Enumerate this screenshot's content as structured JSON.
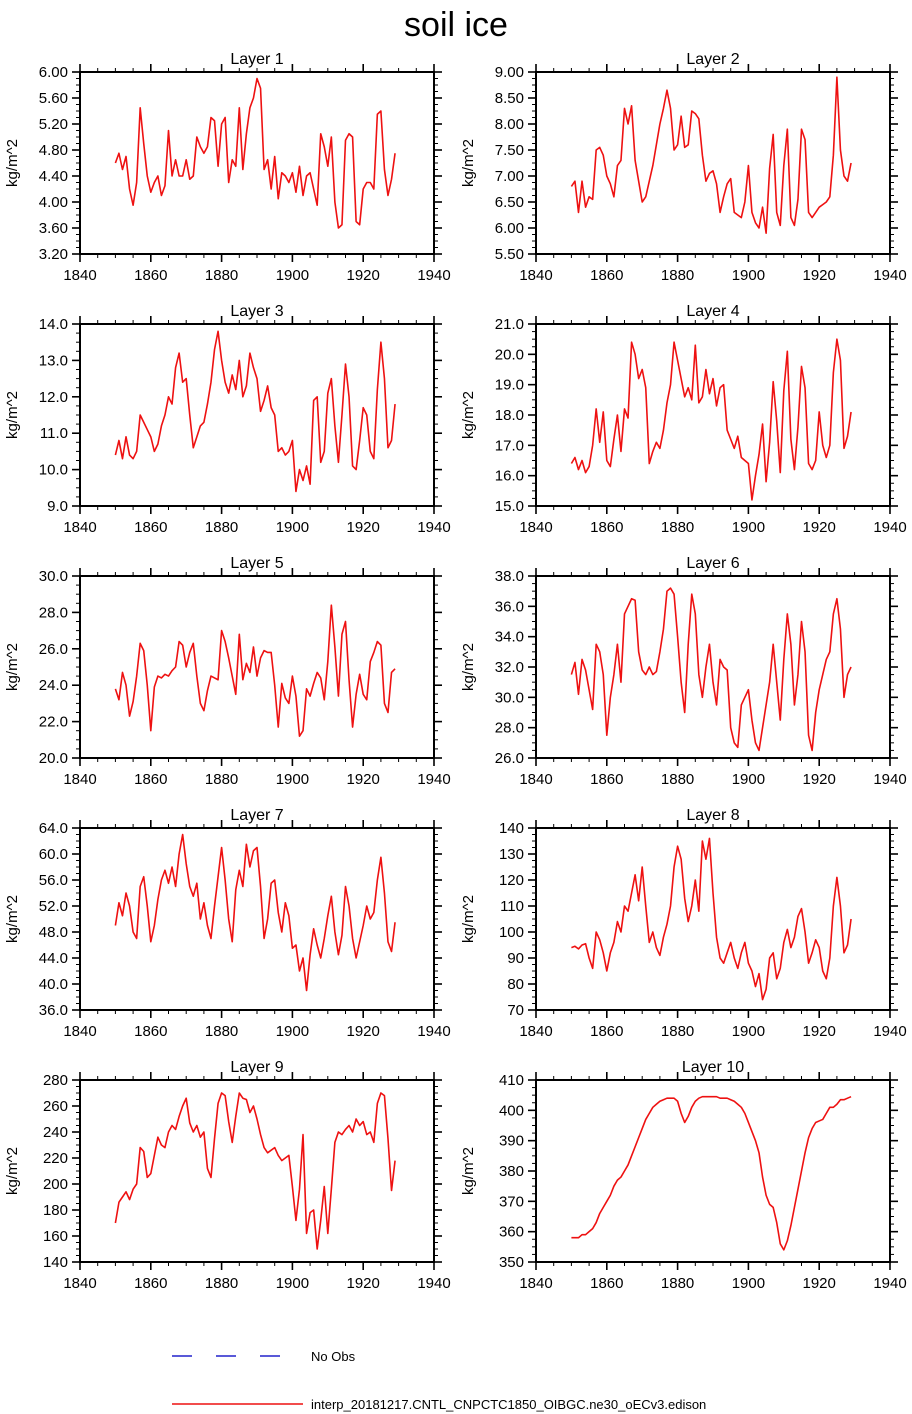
{
  "page": {
    "title": "soil ice"
  },
  "legend": {
    "no_obs_label": "No Obs",
    "no_obs_color": "#2222cc",
    "series_label": "interp_20181217.CNTL_CNPCTC1850_OIBGC.ne30_oECv3.edison",
    "series_color": "#ee1111"
  },
  "chart_data": [
    {
      "type": "line",
      "title": "Layer 1",
      "ylabel": "kg/m^2",
      "xlim": [
        1840,
        1940
      ],
      "xtick": 20,
      "xminor": 5,
      "ylim": [
        3.2,
        6.0
      ],
      "ytick": 0.4,
      "ydecimals": 2,
      "x_start": 1850,
      "x_step": 1,
      "values": [
        4.6,
        4.75,
        4.5,
        4.7,
        4.2,
        3.95,
        4.3,
        5.45,
        4.9,
        4.4,
        4.15,
        4.3,
        4.4,
        4.1,
        4.25,
        5.1,
        4.4,
        4.65,
        4.4,
        4.4,
        4.65,
        4.35,
        4.4,
        5.0,
        4.85,
        4.75,
        4.85,
        5.3,
        5.25,
        4.55,
        5.2,
        5.3,
        4.3,
        4.65,
        4.55,
        5.45,
        4.5,
        5.05,
        5.45,
        5.6,
        5.9,
        5.75,
        4.5,
        4.65,
        4.2,
        4.7,
        4.05,
        4.45,
        4.4,
        4.3,
        4.45,
        4.15,
        4.55,
        4.1,
        4.4,
        4.45,
        4.2,
        3.95,
        5.05,
        4.85,
        4.55,
        5.0,
        4.0,
        3.6,
        3.65,
        4.95,
        5.05,
        5.0,
        3.7,
        3.65,
        4.2,
        4.3,
        4.3,
        4.2,
        5.35,
        5.4,
        4.5,
        4.1,
        4.35,
        4.75
      ]
    },
    {
      "type": "line",
      "title": "Layer 2",
      "ylabel": "kg/m^2",
      "xlim": [
        1840,
        1940
      ],
      "xtick": 20,
      "xminor": 5,
      "ylim": [
        5.5,
        9.0
      ],
      "ytick": 0.5,
      "ydecimals": 2,
      "x_start": 1850,
      "x_step": 1,
      "values": [
        6.8,
        6.9,
        6.3,
        6.9,
        6.4,
        6.6,
        6.55,
        7.5,
        7.55,
        7.4,
        7.0,
        6.85,
        6.6,
        7.2,
        7.3,
        8.3,
        8.0,
        8.35,
        7.3,
        6.9,
        6.5,
        6.6,
        6.9,
        7.2,
        7.6,
        8.0,
        8.3,
        8.65,
        8.3,
        7.5,
        7.6,
        8.15,
        7.55,
        7.6,
        8.25,
        8.2,
        8.1,
        7.4,
        6.9,
        7.05,
        7.1,
        6.85,
        6.3,
        6.6,
        6.85,
        6.95,
        6.3,
        6.25,
        6.2,
        6.5,
        7.2,
        6.3,
        6.1,
        6.0,
        6.4,
        5.9,
        7.15,
        7.8,
        6.3,
        6.05,
        7.2,
        7.9,
        6.2,
        6.05,
        6.55,
        7.9,
        7.7,
        6.3,
        6.2,
        6.3,
        6.4,
        6.45,
        6.5,
        6.6,
        7.4,
        8.9,
        7.5,
        7.0,
        6.9,
        7.25
      ]
    },
    {
      "type": "line",
      "title": "Layer 3",
      "ylabel": "kg/m^2",
      "xlim": [
        1840,
        1940
      ],
      "xtick": 20,
      "xminor": 5,
      "ylim": [
        9.0,
        14.0
      ],
      "ytick": 1.0,
      "ydecimals": 1,
      "x_start": 1850,
      "x_step": 1,
      "values": [
        10.4,
        10.8,
        10.3,
        10.9,
        10.4,
        10.3,
        10.5,
        11.5,
        11.3,
        11.1,
        10.9,
        10.5,
        10.7,
        11.2,
        11.5,
        12.0,
        11.8,
        12.8,
        13.2,
        12.4,
        12.5,
        11.5,
        10.6,
        10.9,
        11.2,
        11.3,
        11.8,
        12.4,
        13.3,
        13.8,
        13.0,
        12.4,
        12.1,
        12.6,
        12.2,
        13.0,
        12.0,
        12.3,
        13.2,
        12.8,
        12.5,
        11.6,
        11.9,
        12.3,
        11.7,
        11.5,
        10.5,
        10.6,
        10.4,
        10.5,
        10.8,
        9.4,
        10.0,
        9.7,
        10.1,
        9.6,
        11.9,
        12.0,
        10.2,
        10.5,
        12.1,
        12.5,
        11.2,
        10.2,
        11.5,
        12.9,
        12.0,
        10.1,
        10.0,
        10.8,
        11.7,
        11.5,
        10.5,
        10.3,
        12.2,
        13.5,
        12.5,
        10.6,
        10.8,
        11.8
      ]
    },
    {
      "type": "line",
      "title": "Layer 4",
      "ylabel": "kg/m^2",
      "xlim": [
        1840,
        1940
      ],
      "xtick": 20,
      "xminor": 5,
      "ylim": [
        15.0,
        21.0
      ],
      "ytick": 1.0,
      "ydecimals": 1,
      "x_start": 1850,
      "x_step": 1,
      "values": [
        16.4,
        16.6,
        16.2,
        16.5,
        16.1,
        16.3,
        17.0,
        18.2,
        17.1,
        18.1,
        16.5,
        16.3,
        17.2,
        18.0,
        16.8,
        18.2,
        17.9,
        20.4,
        20.0,
        19.2,
        19.5,
        18.9,
        16.4,
        16.8,
        17.1,
        16.9,
        17.5,
        18.4,
        19.0,
        20.4,
        19.8,
        19.2,
        18.6,
        18.9,
        18.5,
        20.3,
        18.4,
        18.6,
        19.5,
        18.7,
        19.2,
        18.3,
        18.9,
        19.0,
        17.5,
        17.2,
        16.9,
        17.3,
        16.6,
        16.5,
        16.4,
        15.2,
        16.0,
        16.7,
        17.7,
        15.8,
        17.1,
        19.1,
        17.8,
        16.1,
        18.8,
        20.1,
        17.2,
        16.2,
        17.6,
        19.6,
        18.9,
        16.4,
        16.2,
        16.5,
        18.1,
        17.0,
        16.6,
        17.0,
        19.4,
        20.5,
        19.8,
        16.9,
        17.3,
        18.1
      ]
    },
    {
      "type": "line",
      "title": "Layer 5",
      "ylabel": "kg/m^2",
      "xlim": [
        1840,
        1940
      ],
      "xtick": 20,
      "xminor": 5,
      "ylim": [
        20.0,
        30.0
      ],
      "ytick": 2.0,
      "ydecimals": 1,
      "x_start": 1850,
      "x_step": 1,
      "values": [
        23.8,
        23.2,
        24.7,
        24.0,
        22.3,
        23.1,
        24.5,
        26.3,
        25.9,
        24.0,
        21.5,
        23.9,
        24.5,
        24.4,
        24.6,
        24.5,
        24.8,
        25.0,
        26.4,
        26.2,
        25.0,
        25.8,
        26.3,
        24.5,
        23.0,
        22.6,
        23.7,
        24.5,
        24.4,
        24.3,
        27.0,
        26.4,
        25.5,
        24.5,
        23.5,
        26.8,
        24.3,
        25.2,
        24.7,
        26.1,
        24.5,
        25.5,
        25.9,
        25.8,
        25.8,
        24.0,
        21.7,
        24.1,
        23.3,
        23.0,
        24.5,
        23.4,
        21.2,
        21.5,
        23.8,
        23.4,
        24.1,
        24.7,
        24.4,
        23.2,
        25.3,
        28.4,
        26.1,
        23.4,
        26.8,
        27.5,
        24.3,
        21.7,
        23.5,
        24.6,
        23.5,
        23.2,
        25.3,
        25.8,
        26.4,
        26.2,
        23.0,
        22.5,
        24.7,
        24.9
      ]
    },
    {
      "type": "line",
      "title": "Layer 6",
      "ylabel": "kg/m^2",
      "xlim": [
        1840,
        1940
      ],
      "xtick": 20,
      "xminor": 5,
      "ylim": [
        26.0,
        38.0
      ],
      "ytick": 2.0,
      "ydecimals": 1,
      "x_start": 1850,
      "x_step": 1,
      "values": [
        31.5,
        32.3,
        30.2,
        32.5,
        31.8,
        30.5,
        29.2,
        33.5,
        33.0,
        31.5,
        27.5,
        30.0,
        31.5,
        33.5,
        31.0,
        35.5,
        36.0,
        36.5,
        36.4,
        33.0,
        31.8,
        31.5,
        32.0,
        31.5,
        31.7,
        33.0,
        34.5,
        37.0,
        37.2,
        36.8,
        34.0,
        31.0,
        29.0,
        33.5,
        36.8,
        35.5,
        31.5,
        30.0,
        32.0,
        33.5,
        31.0,
        29.5,
        32.5,
        32.0,
        31.8,
        28.0,
        27.0,
        26.7,
        29.5,
        30.0,
        30.5,
        28.5,
        27.0,
        26.5,
        28.0,
        29.5,
        31.0,
        33.5,
        31.0,
        28.5,
        32.5,
        35.5,
        33.5,
        29.5,
        31.5,
        35.0,
        33.0,
        27.5,
        26.5,
        29.0,
        30.5,
        31.5,
        32.5,
        33.0,
        35.5,
        36.5,
        34.5,
        30.0,
        31.5,
        32.0
      ]
    },
    {
      "type": "line",
      "title": "Layer 7",
      "ylabel": "kg/m^2",
      "xlim": [
        1840,
        1940
      ],
      "xtick": 20,
      "xminor": 5,
      "ylim": [
        36.0,
        64.0
      ],
      "ytick": 4.0,
      "ydecimals": 1,
      "x_start": 1850,
      "x_step": 1,
      "values": [
        49.0,
        52.5,
        50.5,
        54.0,
        52.0,
        48.0,
        47.0,
        55.0,
        56.5,
        52.0,
        46.5,
        49.0,
        53.0,
        56.0,
        57.5,
        55.5,
        58.0,
        55.0,
        60.0,
        63.0,
        58.5,
        55.0,
        53.5,
        55.5,
        50.0,
        52.5,
        49.0,
        47.0,
        52.0,
        56.5,
        61.0,
        56.0,
        50.0,
        46.5,
        54.5,
        57.5,
        55.0,
        61.5,
        58.0,
        60.5,
        61.0,
        55.0,
        47.0,
        50.0,
        55.5,
        56.0,
        51.0,
        48.0,
        52.5,
        50.5,
        45.5,
        46.0,
        42.0,
        44.0,
        39.0,
        44.5,
        48.5,
        46.0,
        44.0,
        47.0,
        50.5,
        53.5,
        48.0,
        44.5,
        47.5,
        55.0,
        52.0,
        47.0,
        44.0,
        46.5,
        49.0,
        52.0,
        50.0,
        51.0,
        56.0,
        59.5,
        54.0,
        46.5,
        45.0,
        49.5
      ]
    },
    {
      "type": "line",
      "title": "Layer 8",
      "ylabel": "kg/m^2",
      "xlim": [
        1840,
        1940
      ],
      "xtick": 20,
      "xminor": 5,
      "ylim": [
        70,
        140
      ],
      "ytick": 10,
      "ydecimals": 0,
      "x_start": 1850,
      "x_step": 1,
      "values": [
        94,
        94.5,
        93.5,
        95,
        95.5,
        90,
        86,
        100,
        97,
        92,
        85,
        92,
        96,
        104,
        100,
        110,
        108,
        115,
        122,
        112,
        125,
        110,
        96,
        100,
        94,
        91,
        98,
        103,
        110,
        125,
        133,
        128,
        113,
        104,
        110,
        120,
        108,
        135,
        128,
        136,
        115,
        98,
        90,
        88,
        92,
        96,
        90,
        86,
        92,
        96,
        88,
        85,
        79,
        84,
        74,
        78,
        90,
        92,
        82,
        86,
        96,
        101,
        94,
        98,
        106,
        109,
        100,
        88,
        92,
        97,
        94,
        85,
        82,
        90,
        110,
        121,
        110,
        92,
        95,
        105
      ]
    },
    {
      "type": "line",
      "title": "Layer 9",
      "ylabel": "kg/m^2",
      "xlim": [
        1840,
        1940
      ],
      "xtick": 20,
      "xminor": 5,
      "ylim": [
        140,
        280
      ],
      "ytick": 20,
      "ydecimals": 0,
      "x_start": 1850,
      "x_step": 1,
      "values": [
        170,
        186,
        190,
        194,
        188,
        196,
        200,
        228,
        225,
        205,
        208,
        222,
        236,
        230,
        228,
        240,
        245,
        242,
        252,
        260,
        266,
        247,
        240,
        245,
        236,
        240,
        212,
        205,
        235,
        262,
        270,
        268,
        248,
        232,
        252,
        270,
        266,
        265,
        255,
        260,
        250,
        238,
        228,
        224,
        226,
        228,
        222,
        218,
        220,
        222,
        198,
        172,
        196,
        238,
        162,
        178,
        180,
        150,
        172,
        198,
        162,
        196,
        232,
        240,
        238,
        242,
        245,
        240,
        250,
        245,
        248,
        238,
        240,
        232,
        262,
        270,
        268,
        235,
        195,
        218
      ]
    },
    {
      "type": "line",
      "title": "Layer 10",
      "ylabel": "kg/m^2",
      "xlim": [
        1840,
        1940
      ],
      "xtick": 20,
      "xminor": 5,
      "ylim": [
        350,
        410
      ],
      "ytick": 10,
      "ydecimals": 0,
      "x_start": 1850,
      "x_step": 1,
      "values": [
        358,
        358,
        358,
        359,
        359,
        360,
        361,
        363,
        366,
        368,
        370,
        372,
        375,
        377,
        378,
        380,
        382,
        385,
        388,
        391,
        394,
        397,
        399,
        401,
        402,
        403,
        403.5,
        404,
        404,
        404,
        403,
        399,
        396,
        398,
        401,
        403,
        404,
        404.5,
        404.5,
        404.5,
        404.5,
        404.5,
        404,
        404,
        404,
        403.5,
        403,
        402,
        401,
        399,
        396,
        393,
        390,
        386,
        378,
        372,
        369,
        368,
        363,
        356,
        354,
        357,
        362,
        368,
        374,
        380,
        386,
        391,
        394,
        396,
        396.5,
        397,
        399,
        401,
        401,
        402,
        403.5,
        403.5,
        404,
        404.5
      ]
    }
  ]
}
